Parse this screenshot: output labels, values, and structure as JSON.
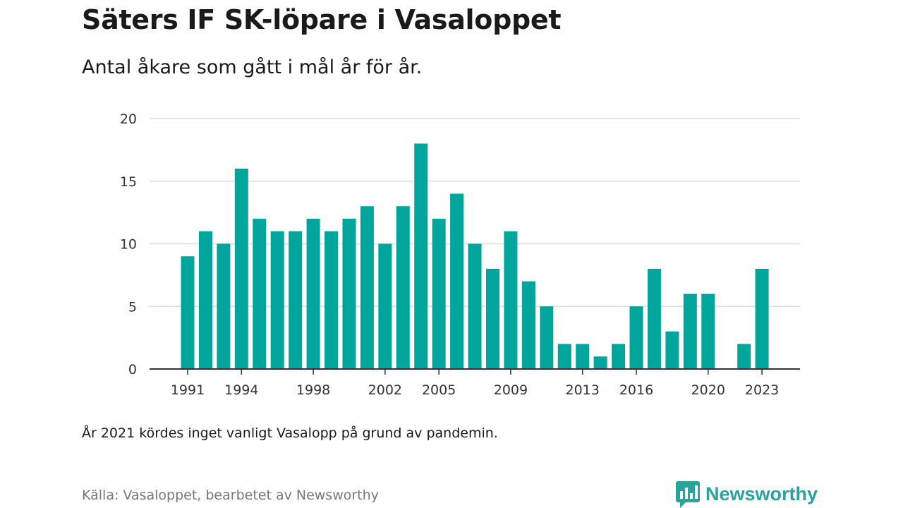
{
  "header": {
    "title": "Säters IF SK-löpare i Vasaloppet",
    "subtitle": "Antal åkare som gått i mål år för år."
  },
  "footer": {
    "note": "År 2021 kördes inget vanligt Vasalopp på grund av pandemin.",
    "source": "Källa: Vasaloppet, bearbetet av Newsworthy",
    "brand": "Newsworthy"
  },
  "colors": {
    "bar": "#00a69c",
    "grid": "#dddddd",
    "axis": "#333333",
    "brand": "#2aa39b"
  },
  "icons": [
    "newsworthy-logo-icon"
  ],
  "chart_data": {
    "type": "bar",
    "title": "Säters IF SK-löpare i Vasaloppet",
    "subtitle": "Antal åkare som gått i mål år för år.",
    "xlabel": "",
    "ylabel": "",
    "ylim": [
      0,
      20
    ],
    "yticks": [
      0,
      5,
      10,
      15,
      20
    ],
    "xtick_labels": [
      "1991",
      "1994",
      "1998",
      "2002",
      "2005",
      "2009",
      "2013",
      "2016",
      "2020",
      "2023"
    ],
    "grid": true,
    "legend": false,
    "categories": [
      "1991",
      "1992",
      "1993",
      "1994",
      "1995",
      "1996",
      "1997",
      "1998",
      "1999",
      "2000",
      "2001",
      "2002",
      "2003",
      "2004",
      "2005",
      "2006",
      "2007",
      "2008",
      "2009",
      "2010",
      "2011",
      "2012",
      "2013",
      "2014",
      "2015",
      "2016",
      "2017",
      "2018",
      "2019",
      "2020",
      "2021",
      "2022",
      "2023"
    ],
    "values": [
      9,
      11,
      10,
      16,
      12,
      11,
      11,
      12,
      11,
      12,
      13,
      10,
      13,
      18,
      12,
      14,
      10,
      8,
      11,
      7,
      5,
      2,
      2,
      1,
      2,
      5,
      8,
      3,
      6,
      6,
      0,
      2,
      8
    ]
  }
}
